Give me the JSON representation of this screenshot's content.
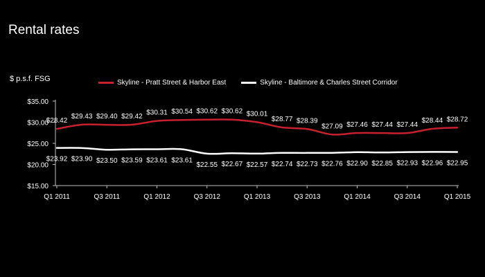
{
  "page": {
    "title": "Rental rates"
  },
  "chart_data": {
    "type": "line",
    "title": "",
    "ylabel": "$ p.s.f. FSG",
    "xlabel": "",
    "ylim": [
      15,
      35
    ],
    "yticks": [
      "$35.00",
      "$30.00",
      "$25.00",
      "$20.00",
      "$15.00"
    ],
    "ytick_values": [
      35,
      30,
      25,
      20,
      15
    ],
    "grid": false,
    "legend": "top",
    "x": [
      "Q1 2011",
      "Q2 2011",
      "Q3 2011",
      "Q4 2011",
      "Q1 2012",
      "Q2 2012",
      "Q3 2012",
      "Q4 2012",
      "Q1 2013",
      "Q2 2013",
      "Q3 2013",
      "Q4 2013",
      "Q1 2014",
      "Q2 2014",
      "Q3 2014",
      "Q4 2014",
      "Q1 2015"
    ],
    "xtick_labels": [
      "Q1 2011",
      "Q3 2011",
      "Q1 2012",
      "Q3 2012",
      "Q1 2013",
      "Q3 2013",
      "Q1 2014",
      "Q3 2014",
      "Q1 2015"
    ],
    "xtick_index": [
      0,
      2,
      4,
      6,
      8,
      10,
      12,
      14,
      16
    ],
    "series": [
      {
        "name": "Skyline - Pratt Street & Harbor East",
        "color": "#c8202f",
        "values": [
          28.42,
          29.43,
          29.4,
          29.42,
          30.31,
          30.54,
          30.62,
          30.62,
          30.01,
          28.77,
          28.39,
          27.09,
          27.46,
          27.44,
          27.44,
          28.44,
          28.72
        ],
        "labels": [
          "$28.42",
          "$29.43",
          "$29.40",
          "$29.42",
          "$30.31",
          "$30.54",
          "$30.62",
          "$30.62",
          "$30.01",
          "$28.77",
          "$28.39",
          "$27.09",
          "$27.46",
          "$27.44",
          "$27.44",
          "$28.44",
          "$28.72"
        ]
      },
      {
        "name": "Skyline - Baltimore & Charles Street Corridor",
        "color": "#ffffff",
        "values": [
          23.92,
          23.9,
          23.5,
          23.59,
          23.61,
          23.61,
          22.55,
          22.67,
          22.57,
          22.74,
          22.73,
          22.76,
          22.9,
          22.85,
          22.93,
          22.96,
          22.95
        ],
        "labels": [
          "$23.92",
          "$23.90",
          "$23.50",
          "$23.59",
          "$23.61",
          "$23.61",
          "$22.55",
          "$22.67",
          "$22.57",
          "$22.74",
          "$22.73",
          "$22.76",
          "$22.90",
          "$22.85",
          "$22.93",
          "$22.96",
          "$22.95"
        ]
      }
    ]
  }
}
